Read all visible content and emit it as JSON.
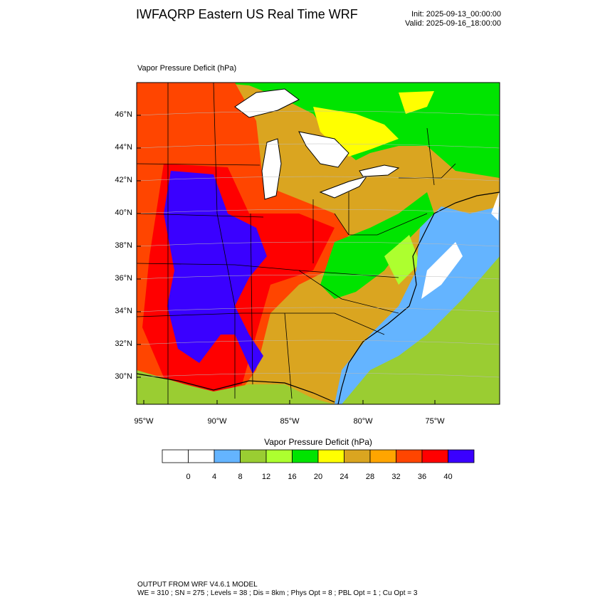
{
  "header": {
    "title": "IWFAQRP Eastern US Real Time WRF",
    "init": "Init: 2025-09-13_00:00:00",
    "valid": "Valid: 2025-09-16_18:00:00"
  },
  "map": {
    "field_label": "Vapor Pressure Deficit   (hPa)",
    "lat_labels": [
      "46°N",
      "44°N",
      "42°N",
      "40°N",
      "38°N",
      "36°N",
      "34°N",
      "32°N",
      "30°N"
    ],
    "lon_labels": [
      "95°W",
      "90°W",
      "85°W",
      "80°W",
      "75°W"
    ]
  },
  "colorbar": {
    "title": "Vapor Pressure Deficit   (hPa)",
    "tick_labels": [
      "0",
      "4",
      "8",
      "12",
      "16",
      "20",
      "24",
      "28",
      "32",
      "36",
      "40"
    ],
    "colors": [
      "#ffffff",
      "#ffffff",
      "#64b4ff",
      "#9acd32",
      "#adff2f",
      "#00e400",
      "#ffff00",
      "#daa520",
      "#ffa500",
      "#ff4500",
      "#ff0000",
      "#3a00ff"
    ]
  },
  "footer": {
    "line1": "OUTPUT FROM WRF V4.6.1 MODEL",
    "line2": "WE = 310 ; SN = 275 ; Levels = 38 ; Dis = 8km ; Phys Opt = 8 ; PBL Opt = 1 ; Cu Opt = 3"
  }
}
